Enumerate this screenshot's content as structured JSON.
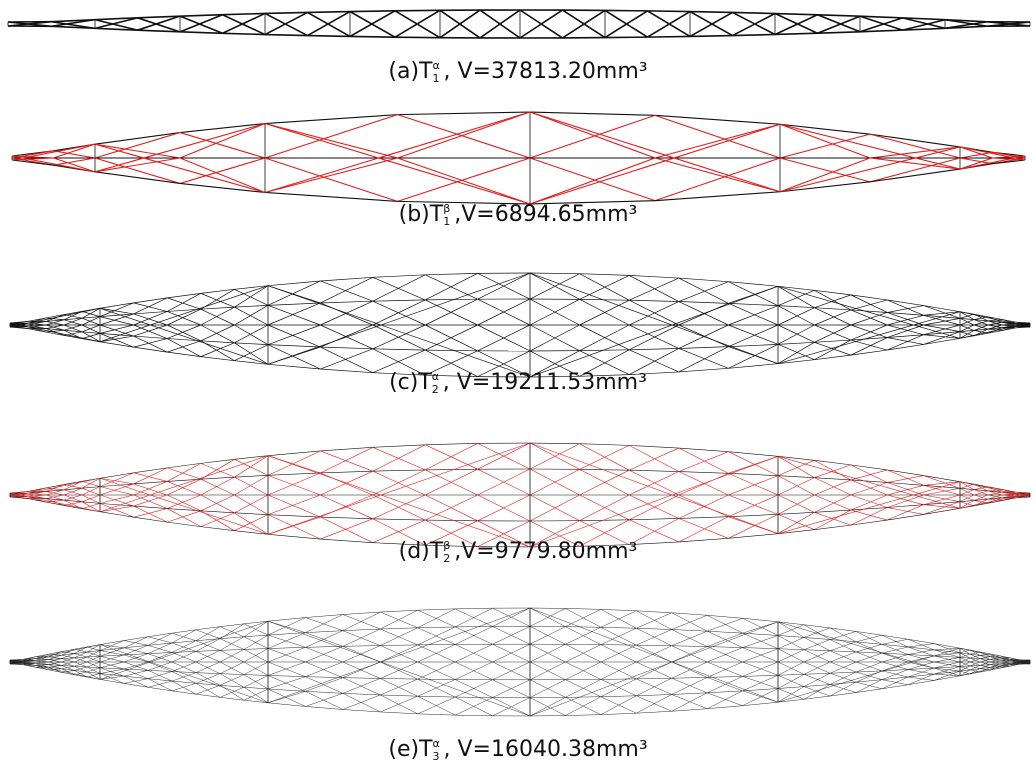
{
  "panels": [
    {
      "label": "(a)",
      "symbol": "T",
      "sup": "α",
      "sub": "1",
      "text": ", V=37813.20mm³"
    },
    {
      "label": "(b)",
      "symbol": "T",
      "sup": "β",
      "sub": "1",
      "text": ",V=6894.65mm³"
    },
    {
      "label": "(c)",
      "symbol": "T",
      "sup": "α",
      "sub": "2",
      "text": ", V=19211.53mm³"
    },
    {
      "label": "(d)",
      "symbol": "T",
      "sup": "β",
      "sub": "2",
      "text": ",V=9779.80mm³"
    },
    {
      "label": "(e)",
      "symbol": "T",
      "sup": "α",
      "sub": "3",
      "text": ", V=16040.38mm³"
    }
  ]
}
